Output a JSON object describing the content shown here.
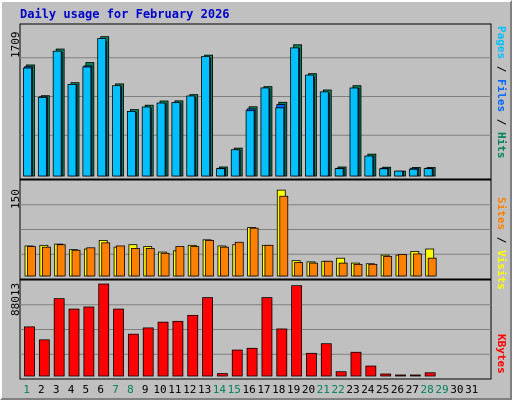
{
  "title": "Daily usage for February 2026",
  "chart_data": [
    {
      "type": "bar",
      "panel": "pages-files-hits",
      "scale_label": "1709",
      "ylim": [
        0,
        1709
      ],
      "categories": [
        "1",
        "2",
        "3",
        "4",
        "5",
        "6",
        "7",
        "8",
        "9",
        "10",
        "11",
        "12",
        "13",
        "14",
        "15",
        "16",
        "17",
        "18",
        "19",
        "20",
        "21",
        "22",
        "23",
        "24",
        "25",
        "26",
        "27",
        "28",
        "29",
        "30",
        "31"
      ],
      "series": [
        {
          "name": "Hits",
          "color": "#00805c",
          "values": [
            1291,
            934,
            1476,
            1085,
            1319,
            1620,
            1071,
            772,
            823,
            872,
            874,
            946,
            1405,
            105,
            324,
            805,
            1039,
            857,
            1526,
            1190,
            1000,
            105,
            1050,
            254,
            102,
            57,
            99,
            99,
            0,
            0,
            0
          ]
        },
        {
          "name": "Files",
          "color": "#0066ff",
          "values": [
            1270,
            920,
            1440,
            1060,
            1280,
            1560,
            1040,
            740,
            790,
            840,
            840,
            910,
            1370,
            90,
            300,
            780,
            1010,
            830,
            1480,
            1150,
            960,
            90,
            1020,
            230,
            90,
            50,
            90,
            90,
            0,
            0,
            0
          ]
        },
        {
          "name": "Pages",
          "color": "#00c0ff",
          "values": [
            1255,
            913,
            1451,
            1065,
            1267,
            1599,
            1050,
            751,
            802,
            848,
            853,
            930,
            1390,
            85,
            305,
            759,
            1024,
            792,
            1489,
            1173,
            978,
            85,
            1023,
            232,
            84,
            57,
            78,
            85,
            0,
            0,
            0
          ]
        }
      ],
      "legend_labels": [
        "Pages",
        "Files",
        "Hits"
      ],
      "legend_colors": [
        "#00c0ff",
        "#0066ff",
        "#00805c"
      ]
    },
    {
      "type": "bar",
      "panel": "visits-sites",
      "scale_label": "150",
      "ylim": [
        0,
        150
      ],
      "series": [
        {
          "name": "Visits",
          "color": "#ffff00",
          "values": [
            49,
            50,
            52,
            43,
            44,
            58,
            47,
            51,
            48,
            39,
            41,
            50,
            59,
            49,
            51,
            79,
            50,
            140,
            25,
            23,
            24,
            29,
            21,
            20,
            34,
            34,
            40,
            44,
            0,
            0,
            0
          ]
        },
        {
          "name": "Sites",
          "color": "#ff8000",
          "values": [
            48,
            47,
            51,
            42,
            46,
            54,
            49,
            45,
            45,
            37,
            48,
            48,
            58,
            47,
            55,
            78,
            50,
            130,
            22,
            21,
            24,
            21,
            19,
            19,
            32,
            35,
            36,
            29,
            0,
            0,
            0
          ]
        }
      ],
      "legend_labels": [
        "Sites",
        "Visits"
      ],
      "legend_colors": [
        "#ff8000",
        "#ffff00"
      ]
    },
    {
      "type": "bar",
      "panel": "kbytes",
      "scale_label": "88013",
      "ylim": [
        0,
        88013
      ],
      "series": [
        {
          "name": "KBytes",
          "color": "#ff0000",
          "values": [
            47000,
            34600,
            74000,
            64000,
            66000,
            88013,
            64000,
            40000,
            46000,
            51500,
            52300,
            58000,
            75000,
            2300,
            24800,
            26500,
            75000,
            45000,
            86400,
            21700,
            30900,
            4100,
            22700,
            9500,
            1900,
            960,
            950,
            3100,
            0,
            0,
            0
          ]
        }
      ],
      "legend_labels": [
        "KBytes"
      ],
      "legend_colors": [
        "#ff0000"
      ]
    }
  ],
  "day_labels": [
    "1",
    "2",
    "3",
    "4",
    "5",
    "6",
    "7",
    "8",
    "9",
    "10",
    "11",
    "12",
    "13",
    "14",
    "15",
    "16",
    "17",
    "18",
    "19",
    "20",
    "21",
    "22",
    "23",
    "24",
    "25",
    "26",
    "27",
    "28",
    "29",
    "30",
    "31"
  ],
  "weekend_days": [
    1,
    7,
    8,
    14,
    15,
    21,
    22,
    28,
    29
  ],
  "colors": {
    "title": "#0000cc",
    "weekday_label": "#000000",
    "weekend_label": "#00805c",
    "panel_bg": "#c0c0c0",
    "gridline": "#808080",
    "separator": "#000000"
  }
}
